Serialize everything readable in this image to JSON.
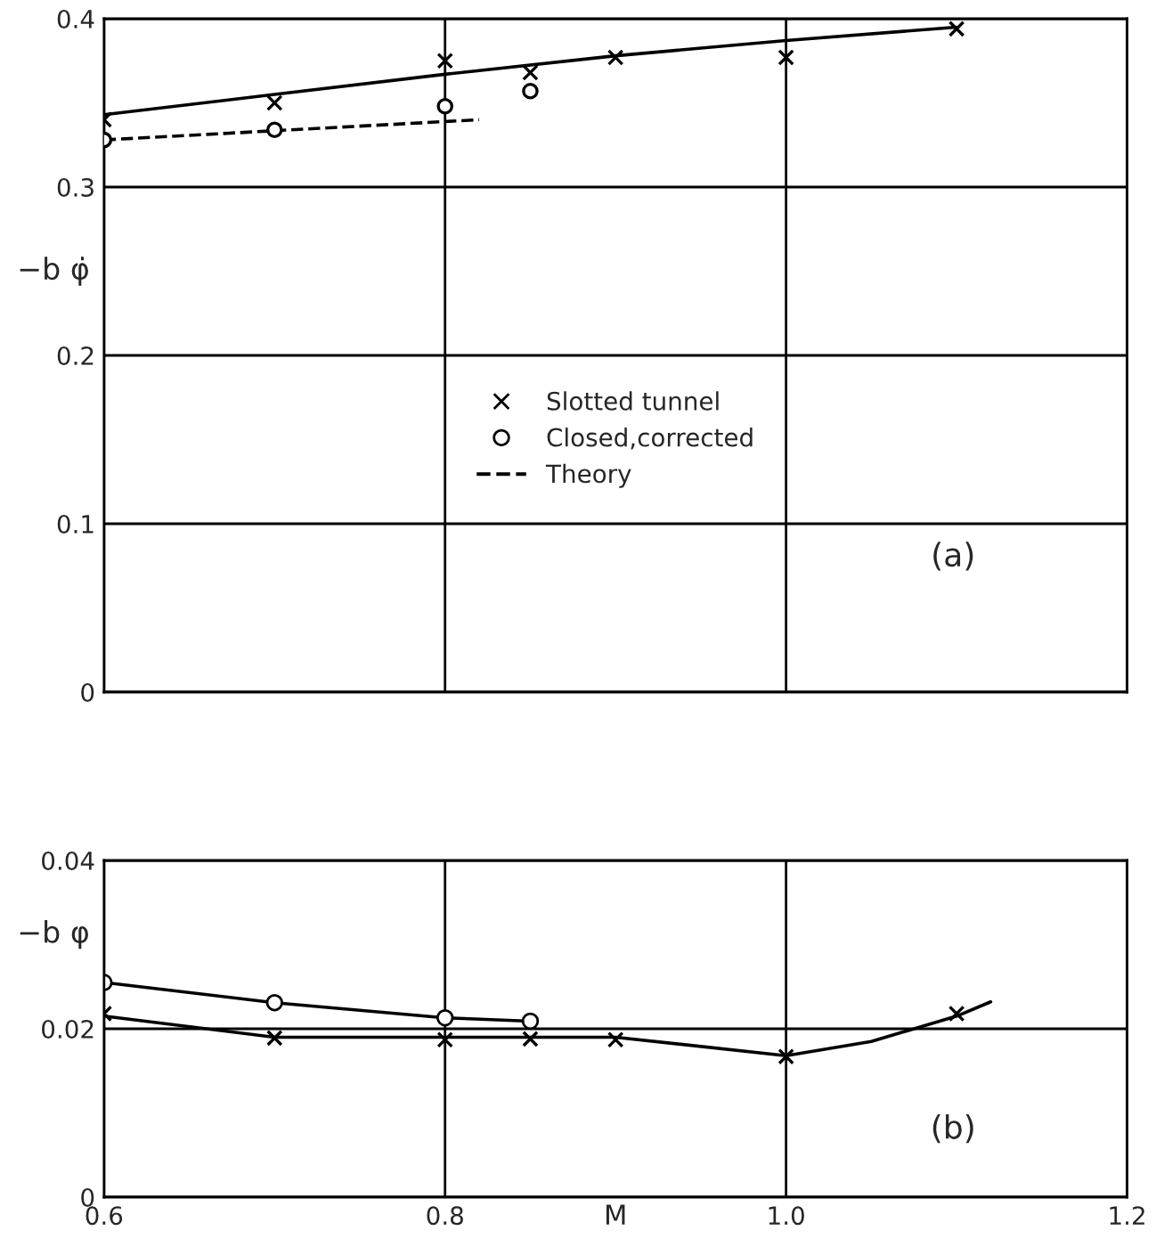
{
  "chart_data": [
    {
      "type": "scatter",
      "ylabel": "−b φ̇",
      "xlim": [
        0.6,
        1.2
      ],
      "ylim": [
        0,
        0.4
      ],
      "xticks": [
        0.6,
        0.8,
        1.0,
        1.2
      ],
      "yticks": [
        0,
        0.1,
        0.2,
        0.3,
        0.4
      ],
      "tick_labels": "y",
      "grid": true,
      "legend": "center",
      "annotations": [
        "(a)"
      ],
      "series": [
        {
          "name": "Slotted tunnel",
          "color": "#000000",
          "marker": "cross",
          "x": [
            0.6,
            0.7,
            0.8,
            0.85,
            0.9,
            1.0,
            1.1
          ],
          "values": [
            0.34,
            0.35,
            0.375,
            0.368,
            0.377,
            0.377,
            0.394
          ]
        },
        {
          "name": "Closed,corrected",
          "color": "#000000",
          "marker": "circle",
          "x": [
            0.6,
            0.7,
            0.8,
            0.85
          ],
          "values": [
            0.328,
            0.334,
            0.348,
            0.357
          ]
        },
        {
          "type": "line",
          "name": "Theory",
          "color": "#000000",
          "line_style": "dashed",
          "x": [
            0.6,
            0.82
          ],
          "values": [
            0.328,
            0.34
          ]
        },
        {
          "type": "line",
          "color": "#000000",
          "line_style": "solid",
          "x": [
            0.6,
            0.7,
            0.8,
            0.9,
            1.0,
            1.1
          ],
          "values": [
            0.343,
            0.355,
            0.367,
            0.378,
            0.387,
            0.395
          ]
        }
      ]
    },
    {
      "type": "scatter",
      "ylabel": "−b φ",
      "xlabel": "M",
      "xlim": [
        0.6,
        1.2
      ],
      "ylim": [
        0,
        0.04
      ],
      "xticks": [
        0.6,
        0.8,
        {
          "value": 1.0,
          "label": "1.0"
        },
        1.2
      ],
      "yticks": [
        0,
        0.02,
        0.04
      ],
      "grid": true,
      "annotations": [
        "(b)"
      ],
      "series": [
        {
          "type": "line",
          "color": "#000000",
          "marker": "circle",
          "line_style": "solid",
          "x": [
            0.6,
            0.7,
            0.8,
            0.85
          ],
          "values": [
            0.0255,
            0.0231,
            0.0213,
            0.0209
          ]
        },
        {
          "color": "#000000",
          "marker": "cross",
          "x": [
            0.6,
            0.7,
            0.8,
            0.85,
            0.9,
            1.0,
            1.1
          ],
          "values": [
            0.0218,
            0.0189,
            0.0187,
            0.0188,
            0.0187,
            0.0167,
            0.0218
          ]
        },
        {
          "type": "line",
          "color": "#000000",
          "line_style": "solid",
          "x": [
            0.6,
            0.7,
            0.8,
            0.9,
            1.0,
            1.05,
            1.1,
            1.12
          ],
          "values": [
            0.0215,
            0.019,
            0.019,
            0.019,
            0.0168,
            0.0185,
            0.0215,
            0.0232
          ]
        }
      ]
    }
  ]
}
